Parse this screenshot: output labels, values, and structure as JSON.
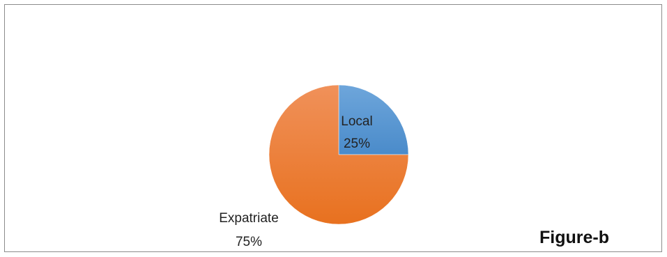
{
  "chart_data": {
    "type": "pie",
    "title": "",
    "categories": [
      "Local",
      "Expatriate"
    ],
    "values": [
      25,
      75
    ],
    "labels": [
      {
        "category": "Local",
        "percent": "25%"
      },
      {
        "category": "Expatriate",
        "percent": "75%"
      }
    ],
    "colors": [
      "#5b9bd5",
      "#ed7d31"
    ],
    "legend": "none"
  },
  "figure_label": "Figure-b"
}
